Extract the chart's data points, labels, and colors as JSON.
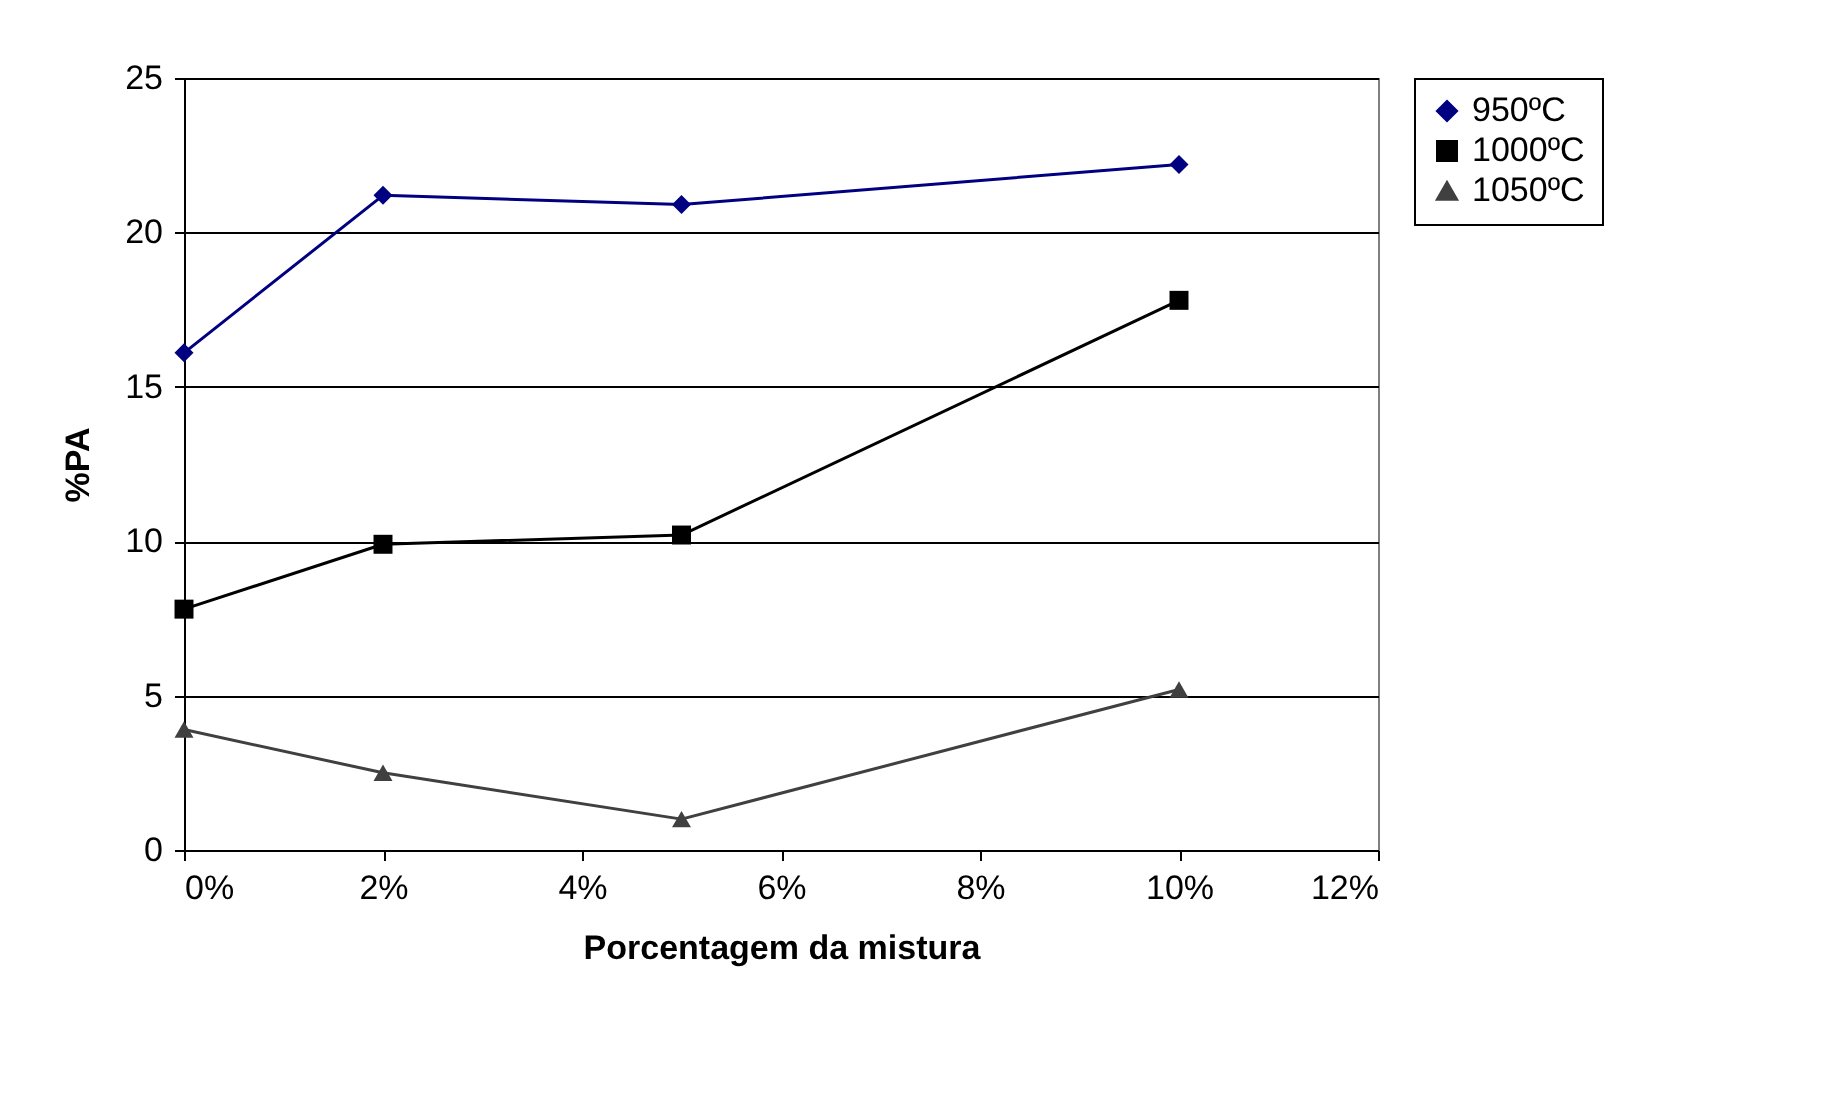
{
  "chart_data": {
    "type": "line",
    "xlabel": "Porcentagem da mistura",
    "ylabel": "%PA",
    "xlim": [
      0,
      12
    ],
    "xticks": [
      {
        "value": 0,
        "label": "0%"
      },
      {
        "value": 2,
        "label": "2%"
      },
      {
        "value": 4,
        "label": "4%"
      },
      {
        "value": 6,
        "label": "6%"
      },
      {
        "value": 8,
        "label": "8%"
      },
      {
        "value": 10,
        "label": "10%"
      },
      {
        "value": 12,
        "label": "12%"
      }
    ],
    "ylim": [
      0,
      25
    ],
    "yticks": [
      0,
      5,
      10,
      15,
      20,
      25
    ],
    "grid": "y",
    "legend": "right",
    "series": [
      {
        "name": "950ºC",
        "color": "#000080",
        "marker": "diamond",
        "x": [
          0,
          2,
          5,
          10
        ],
        "values": [
          16.1,
          21.2,
          20.9,
          22.2
        ]
      },
      {
        "name": "1000ºC",
        "color": "#000000",
        "marker": "square",
        "x": [
          0,
          2,
          5,
          10
        ],
        "values": [
          7.8,
          9.9,
          10.2,
          17.8
        ]
      },
      {
        "name": "1050ºC",
        "color": "#404040",
        "marker": "triangle",
        "x": [
          0,
          2,
          5,
          10
        ],
        "values": [
          3.9,
          2.5,
          1.0,
          5.2
        ]
      }
    ]
  }
}
